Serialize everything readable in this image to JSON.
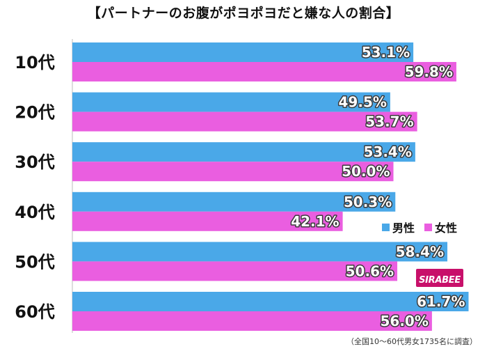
{
  "chart_data": {
    "type": "bar",
    "orientation": "horizontal",
    "title": "【パートナーのお腹がポヨポヨだと嫌な人の割合】",
    "categories": [
      "10代",
      "20代",
      "30代",
      "40代",
      "50代",
      "60代"
    ],
    "series": [
      {
        "name": "男性",
        "color": "#4aa8e8",
        "values": [
          53.1,
          49.5,
          53.4,
          50.3,
          58.4,
          61.7
        ],
        "labels": [
          "53.1%",
          "49.5%",
          "53.4%",
          "50.3%",
          "58.4%",
          "61.7%"
        ]
      },
      {
        "name": "女性",
        "color": "#ea5ee0",
        "values": [
          59.8,
          53.7,
          50.0,
          42.1,
          50.6,
          56.0
        ],
        "labels": [
          "59.8%",
          "53.7%",
          "50.0%",
          "42.1%",
          "50.6%",
          "56.0%"
        ]
      }
    ],
    "xlim": [
      0,
      70
    ],
    "grid": false,
    "legend": "right"
  },
  "logo_text": "SIRABEE",
  "footnote": "（全国10〜60代男女1735名に調査）"
}
